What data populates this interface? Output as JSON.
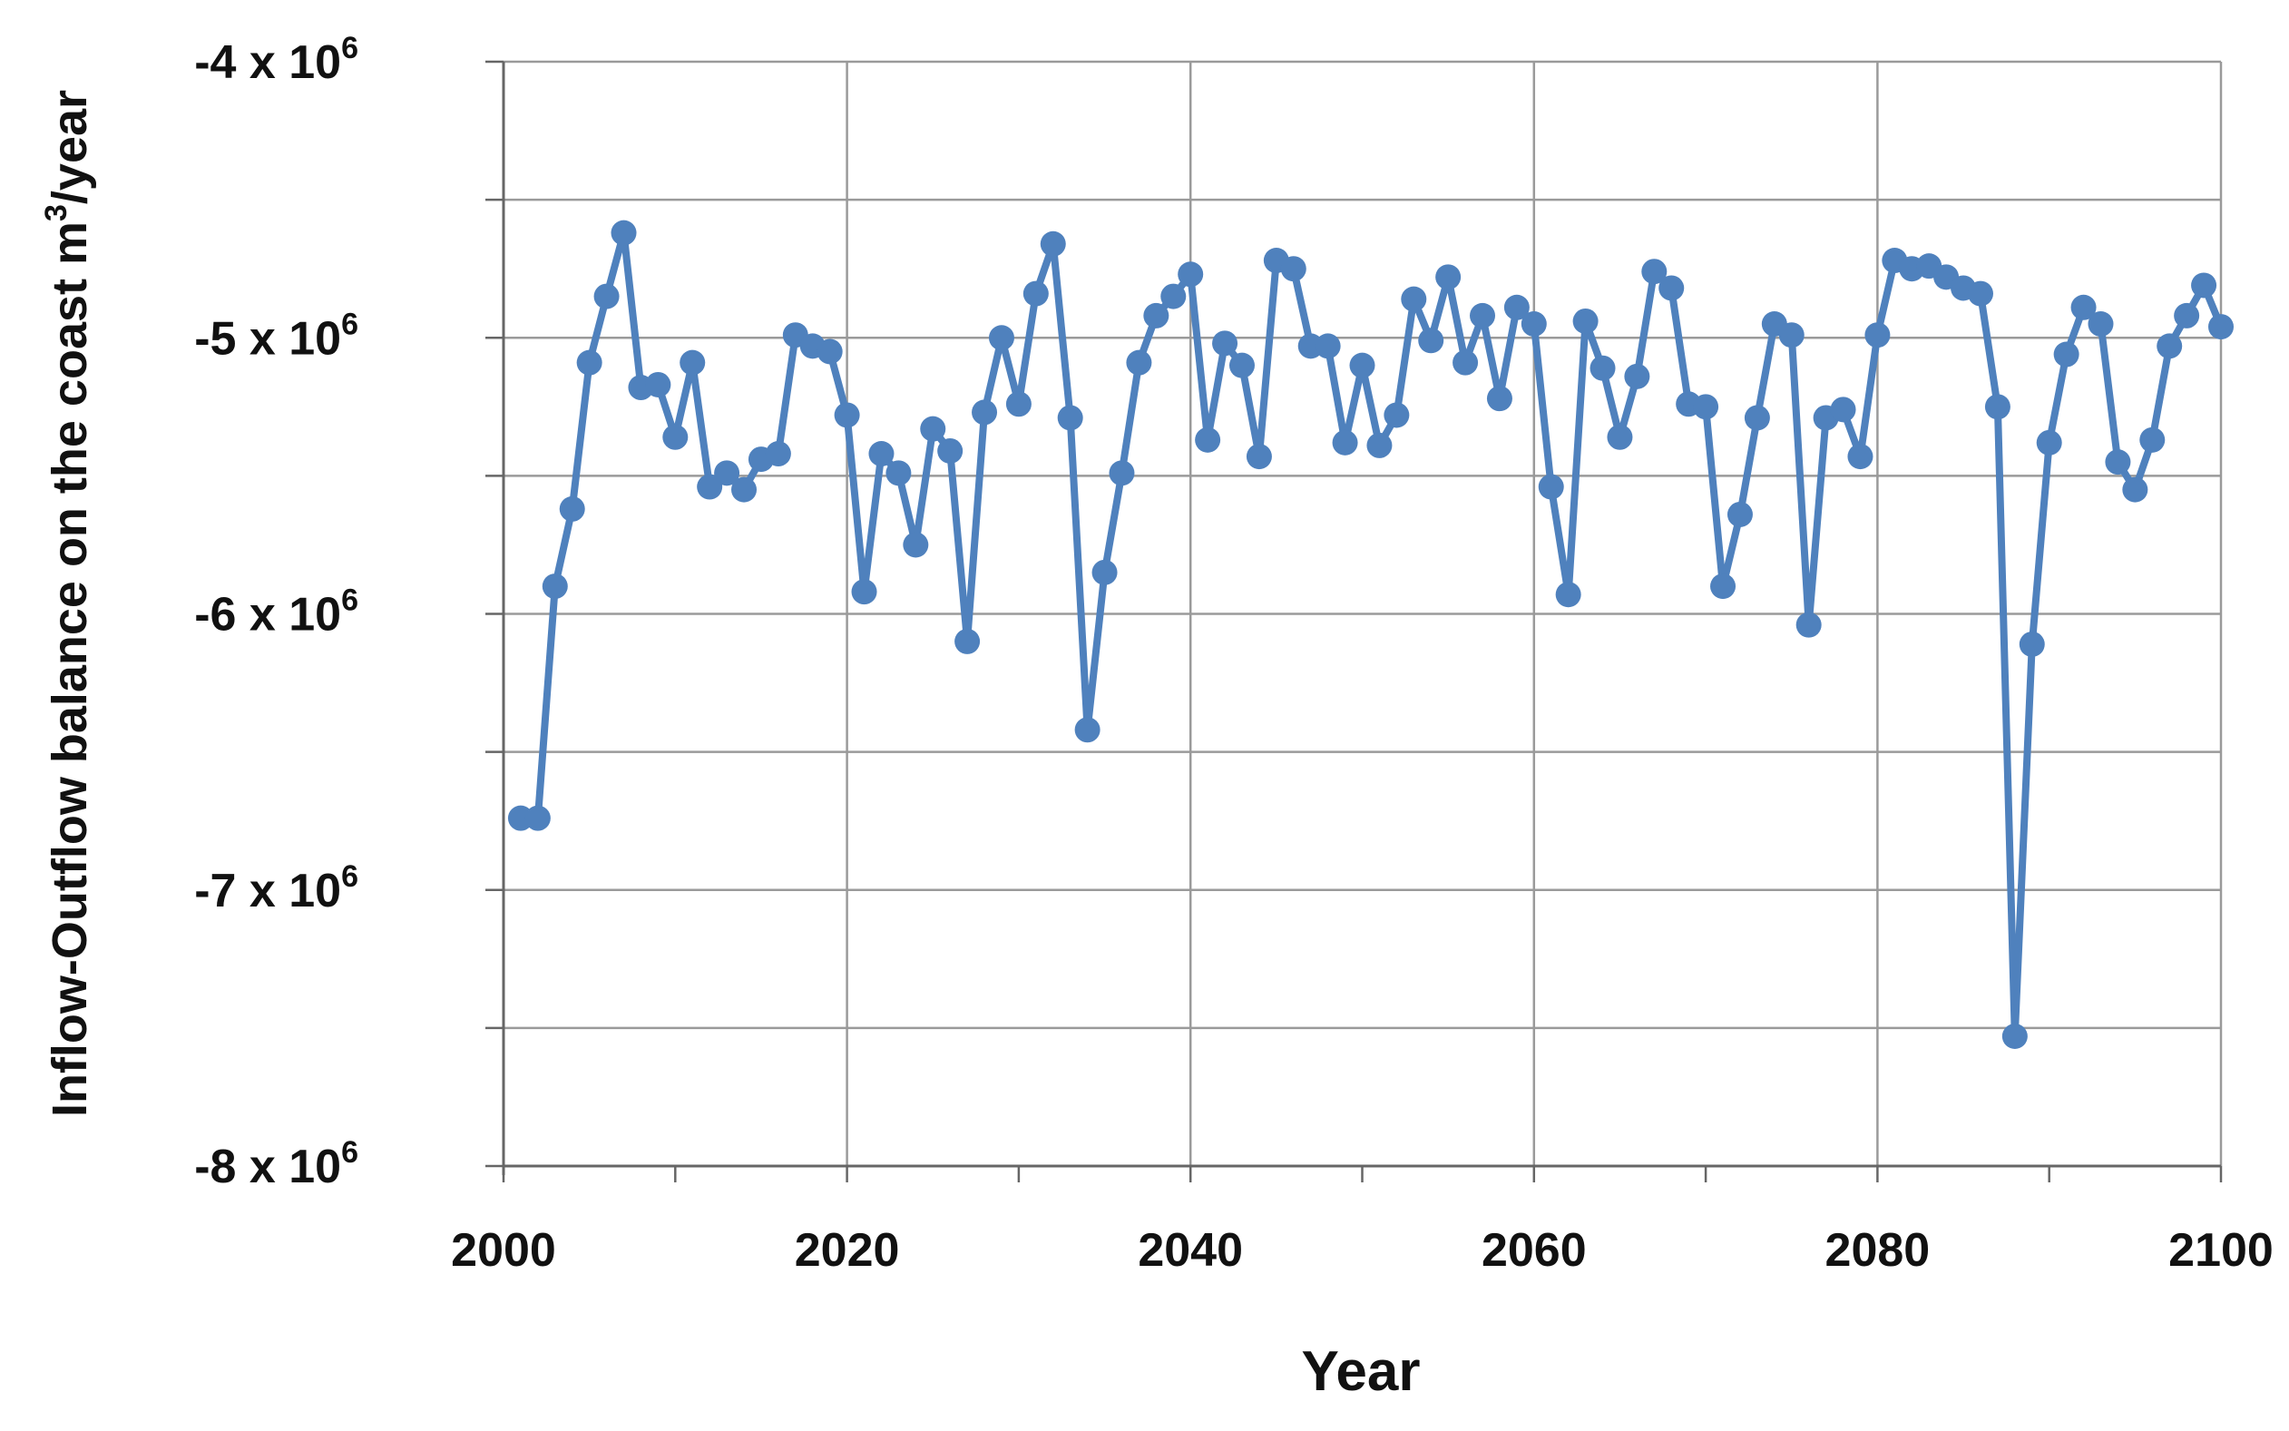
{
  "chart_data": {
    "type": "line",
    "xlabel": "Year",
    "ylabel": {
      "main": "Inflow-Outflow balance on the coast  m",
      "sup": "3",
      "tail": "/year"
    },
    "xlim": [
      2000,
      2100
    ],
    "ylim": [
      -8000000,
      -4000000
    ],
    "x_ticks": [
      2000,
      2020,
      2040,
      2060,
      2080,
      2100
    ],
    "x_tick_labels": [
      "2000",
      "2020",
      "2040",
      "2060",
      "2080",
      "2100"
    ],
    "y_ticks": [
      -4000000,
      -5000000,
      -6000000,
      -7000000,
      -8000000
    ],
    "y_tick_labels": [
      {
        "mantissa": "-4 x 10",
        "exp": "6"
      },
      {
        "mantissa": "-5 x 10",
        "exp": "6"
      },
      {
        "mantissa": "-6 x 10",
        "exp": "6"
      },
      {
        "mantissa": "-7 x 10",
        "exp": "6"
      },
      {
        "mantissa": "-8 x 10",
        "exp": "6"
      }
    ],
    "grid": {
      "horizontal_step": 500000,
      "vertical_step": 20,
      "minor_x_tick_step": 10
    },
    "colors": {
      "series": "#4f81bd",
      "grid": "#9a9a9a",
      "axis": "#666666",
      "text": "#111111"
    },
    "series": [
      {
        "x": [
          2001,
          2002,
          2003,
          2004,
          2005,
          2006,
          2007,
          2008,
          2009,
          2010,
          2011,
          2012,
          2013,
          2014,
          2015,
          2016,
          2017,
          2018,
          2019,
          2020,
          2021,
          2022,
          2023,
          2024,
          2025,
          2026,
          2027,
          2028,
          2029,
          2030,
          2031,
          2032,
          2033,
          2034,
          2035,
          2036,
          2037,
          2038,
          2039,
          2040,
          2041,
          2042,
          2043,
          2044,
          2045,
          2046,
          2047,
          2048,
          2049,
          2050,
          2051,
          2052,
          2053,
          2054,
          2055,
          2056,
          2057,
          2058,
          2059,
          2060,
          2061,
          2062,
          2063,
          2064,
          2065,
          2066,
          2067,
          2068,
          2069,
          2070,
          2071,
          2072,
          2073,
          2074,
          2075,
          2076,
          2077,
          2078,
          2079,
          2080,
          2081,
          2082,
          2083,
          2084,
          2085,
          2086,
          2087,
          2088,
          2089,
          2090,
          2091,
          2092,
          2093,
          2094,
          2095,
          2096,
          2097,
          2098,
          2099,
          2100
        ],
        "values": [
          -6740000,
          -6740000,
          -5900000,
          -5620000,
          -5090000,
          -4850000,
          -4620000,
          -5180000,
          -5170000,
          -5360000,
          -5090000,
          -5540000,
          -5490000,
          -5550000,
          -5440000,
          -5420000,
          -4990000,
          -5030000,
          -5050000,
          -5280000,
          -5920000,
          -5420000,
          -5490000,
          -5750000,
          -5330000,
          -5410000,
          -6100000,
          -5270000,
          -5000000,
          -5240000,
          -4840000,
          -4660000,
          -5290000,
          -6420000,
          -5850000,
          -5490000,
          -5090000,
          -4920000,
          -4850000,
          -4770000,
          -5370000,
          -5020000,
          -5100000,
          -5430000,
          -4720000,
          -4750000,
          -5030000,
          -5030000,
          -5380000,
          -5100000,
          -5390000,
          -5280000,
          -4860000,
          -5010000,
          -4780000,
          -5090000,
          -4920000,
          -5220000,
          -4890000,
          -4950000,
          -5540000,
          -5930000,
          -4940000,
          -5110000,
          -5360000,
          -5140000,
          -4760000,
          -4820000,
          -5240000,
          -5250000,
          -5900000,
          -5640000,
          -5290000,
          -4950000,
          -4990000,
          -6040000,
          -5290000,
          -5260000,
          -5430000,
          -4990000,
          -4720000,
          -4750000,
          -4740000,
          -4780000,
          -4820000,
          -4840000,
          -5250000,
          -7530000,
          -6110000,
          -5380000,
          -5060000,
          -4890000,
          -4950000,
          -5450000,
          -5550000,
          -5370000,
          -5030000,
          -4920000,
          -4810000,
          -4960000
        ]
      }
    ]
  }
}
